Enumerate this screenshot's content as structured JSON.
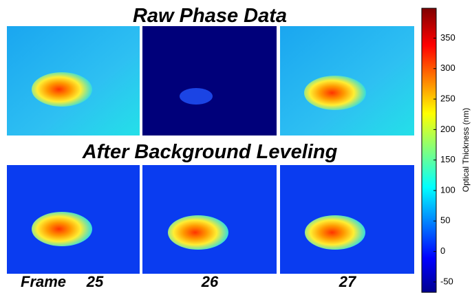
{
  "titles": {
    "top": "Raw Phase Data",
    "bottom": "After Background Leveling"
  },
  "frames": {
    "prefix": "Frame",
    "labels": [
      "25",
      "26",
      "27"
    ]
  },
  "colorbar": {
    "label": "Optical Thickness (nm)",
    "lim": [
      -67,
      399
    ],
    "ticks": [
      -50,
      0,
      50,
      100,
      150,
      200,
      250,
      300,
      350
    ],
    "colormap": "jet"
  }
}
